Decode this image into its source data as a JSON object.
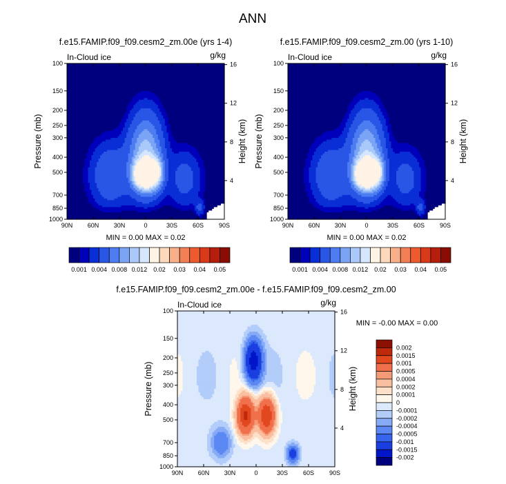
{
  "page_title": "ANN",
  "colors": {
    "frame": "#000000",
    "top_scale": [
      "#00007f",
      "#0000bb",
      "#0a2ed6",
      "#2a56e6",
      "#4d7df0",
      "#7ba4f5",
      "#a9c9fa",
      "#d6e6fc",
      "#fff3e6",
      "#fcd9bd",
      "#f7b089",
      "#f38054",
      "#ec5a2e",
      "#d93a1a",
      "#b51e0c",
      "#8a0c05"
    ],
    "diff_scale": [
      "#00007f",
      "#0016c8",
      "#1a3ee0",
      "#3664ec",
      "#5b88f2",
      "#86aaf6",
      "#b2cdfa",
      "#dce9fd",
      "#fff6ec",
      "#fde0c8",
      "#f9bfa0",
      "#f59a76",
      "#f0704c",
      "#e2481f",
      "#bd2a0b",
      "#8c1104"
    ]
  },
  "chart_data": [
    {
      "type": "heatmap",
      "title": "f.e15.FAMIP.f09_f09.cesm2_zm.00e (yrs 1-4)",
      "left_label": "In-Cloud ice",
      "right_label": "g/kg",
      "ylabel": "Pressure (mb)",
      "ylabel_right": "Height (km)",
      "x_ticks": [
        "90N",
        "60N",
        "30N",
        "0",
        "30S",
        "60S",
        "90S"
      ],
      "y_ticks": [
        "100",
        "150",
        "200",
        "250",
        "300",
        "400",
        "500",
        "700",
        "850",
        "1000"
      ],
      "y_right_ticks": [
        "16",
        "12",
        "8",
        "4"
      ],
      "stats": "MIN =   0.00  MAX =  0.02",
      "colorbar_labels": [
        "0.001",
        "0.004",
        "0.008",
        "0.012",
        "0.02",
        "0.03",
        "0.04",
        "0.05"
      ]
    },
    {
      "type": "heatmap",
      "title": "f.e15.FAMIP.f09_f09.cesm2_zm.00 (yrs 1-10)",
      "left_label": "In-Cloud ice",
      "right_label": "g/kg",
      "ylabel": "Pressure (mb)",
      "ylabel_right": "Height (km)",
      "x_ticks": [
        "90N",
        "60N",
        "30N",
        "0",
        "30S",
        "60S",
        "90S"
      ],
      "y_ticks": [
        "100",
        "150",
        "200",
        "250",
        "300",
        "400",
        "500",
        "700",
        "850",
        "1000"
      ],
      "y_right_ticks": [
        "16",
        "12",
        "8",
        "4"
      ],
      "stats": "MIN =   0.00  MAX =  0.02",
      "colorbar_labels": [
        "0.001",
        "0.004",
        "0.008",
        "0.012",
        "0.02",
        "0.03",
        "0.04",
        "0.05"
      ]
    },
    {
      "type": "heatmap",
      "title": "f.e15.FAMIP.f09_f09.cesm2_zm.00e - f.e15.FAMIP.f09_f09.cesm2_zm.00",
      "left_label": "In-Cloud ice",
      "right_label": "g/kg",
      "ylabel": "Pressure (mb)",
      "ylabel_right": "Height (km)",
      "x_ticks": [
        "90N",
        "60N",
        "30N",
        "0",
        "30S",
        "60S",
        "90S"
      ],
      "y_ticks": [
        "100",
        "150",
        "200",
        "250",
        "300",
        "400",
        "500",
        "700",
        "850",
        "1000"
      ],
      "y_right_ticks": [
        "16",
        "12",
        "8",
        "4"
      ],
      "stats": "MIN =  -0.00  MAX =   0.00",
      "colorbar_labels": [
        "0.002",
        "0.0015",
        "0.001",
        "0.0005",
        "0.0004",
        "0.0002",
        "0.0001",
        "0",
        "-0.0001",
        "-0.0002",
        "-0.0004",
        "-0.0005",
        "-0.001",
        "-0.0015",
        "-0.002"
      ]
    }
  ]
}
